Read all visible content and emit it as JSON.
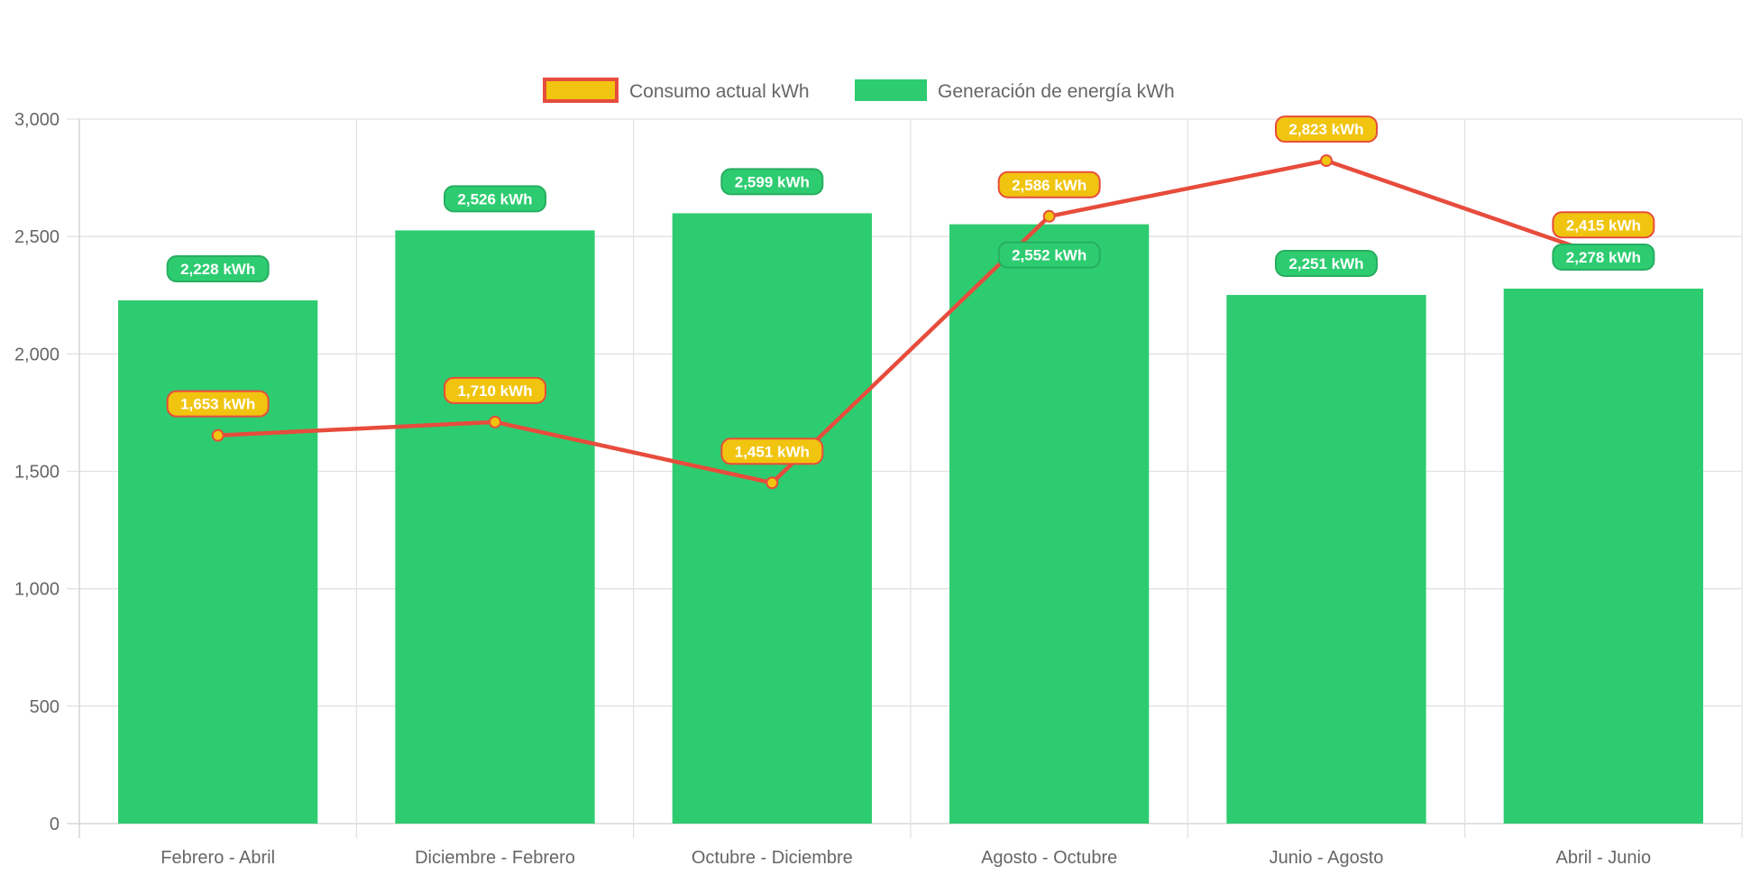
{
  "chart_data": {
    "type": "bar",
    "categories": [
      "Febrero - Abril",
      "Diciembre - Febrero",
      "Octubre - Diciembre",
      "Agosto - Octubre",
      "Junio - Agosto",
      "Abril - Junio"
    ],
    "series": [
      {
        "name": "Consumo actual kWh",
        "type": "line",
        "values": [
          1653,
          1710,
          1451,
          2586,
          2823,
          2415
        ],
        "color": "#e74c3c",
        "point_color": "#f1c40f",
        "labels": [
          "1,653 kWh",
          "1,710 kWh",
          "1,451 kWh",
          "2,586 kWh",
          "2,823 kWh",
          "2,415 kWh"
        ]
      },
      {
        "name": "Generación de energía kWh",
        "type": "bar",
        "values": [
          2228,
          2526,
          2599,
          2552,
          2251,
          2278
        ],
        "color": "#2ecc71",
        "labels": [
          "2,228 kWh",
          "2,526 kWh",
          "2,599 kWh",
          "2,552 kWh",
          "2,251 kWh",
          "2,278 kWh"
        ]
      }
    ],
    "ylim": [
      0,
      3000
    ],
    "yticks": [
      0,
      500,
      1000,
      1500,
      2000,
      2500,
      3000
    ],
    "ytick_labels": [
      "0",
      "500",
      "1,000",
      "1,500",
      "2,000",
      "2,500",
      "3,000"
    ],
    "grid": true,
    "legend": "top-center"
  }
}
